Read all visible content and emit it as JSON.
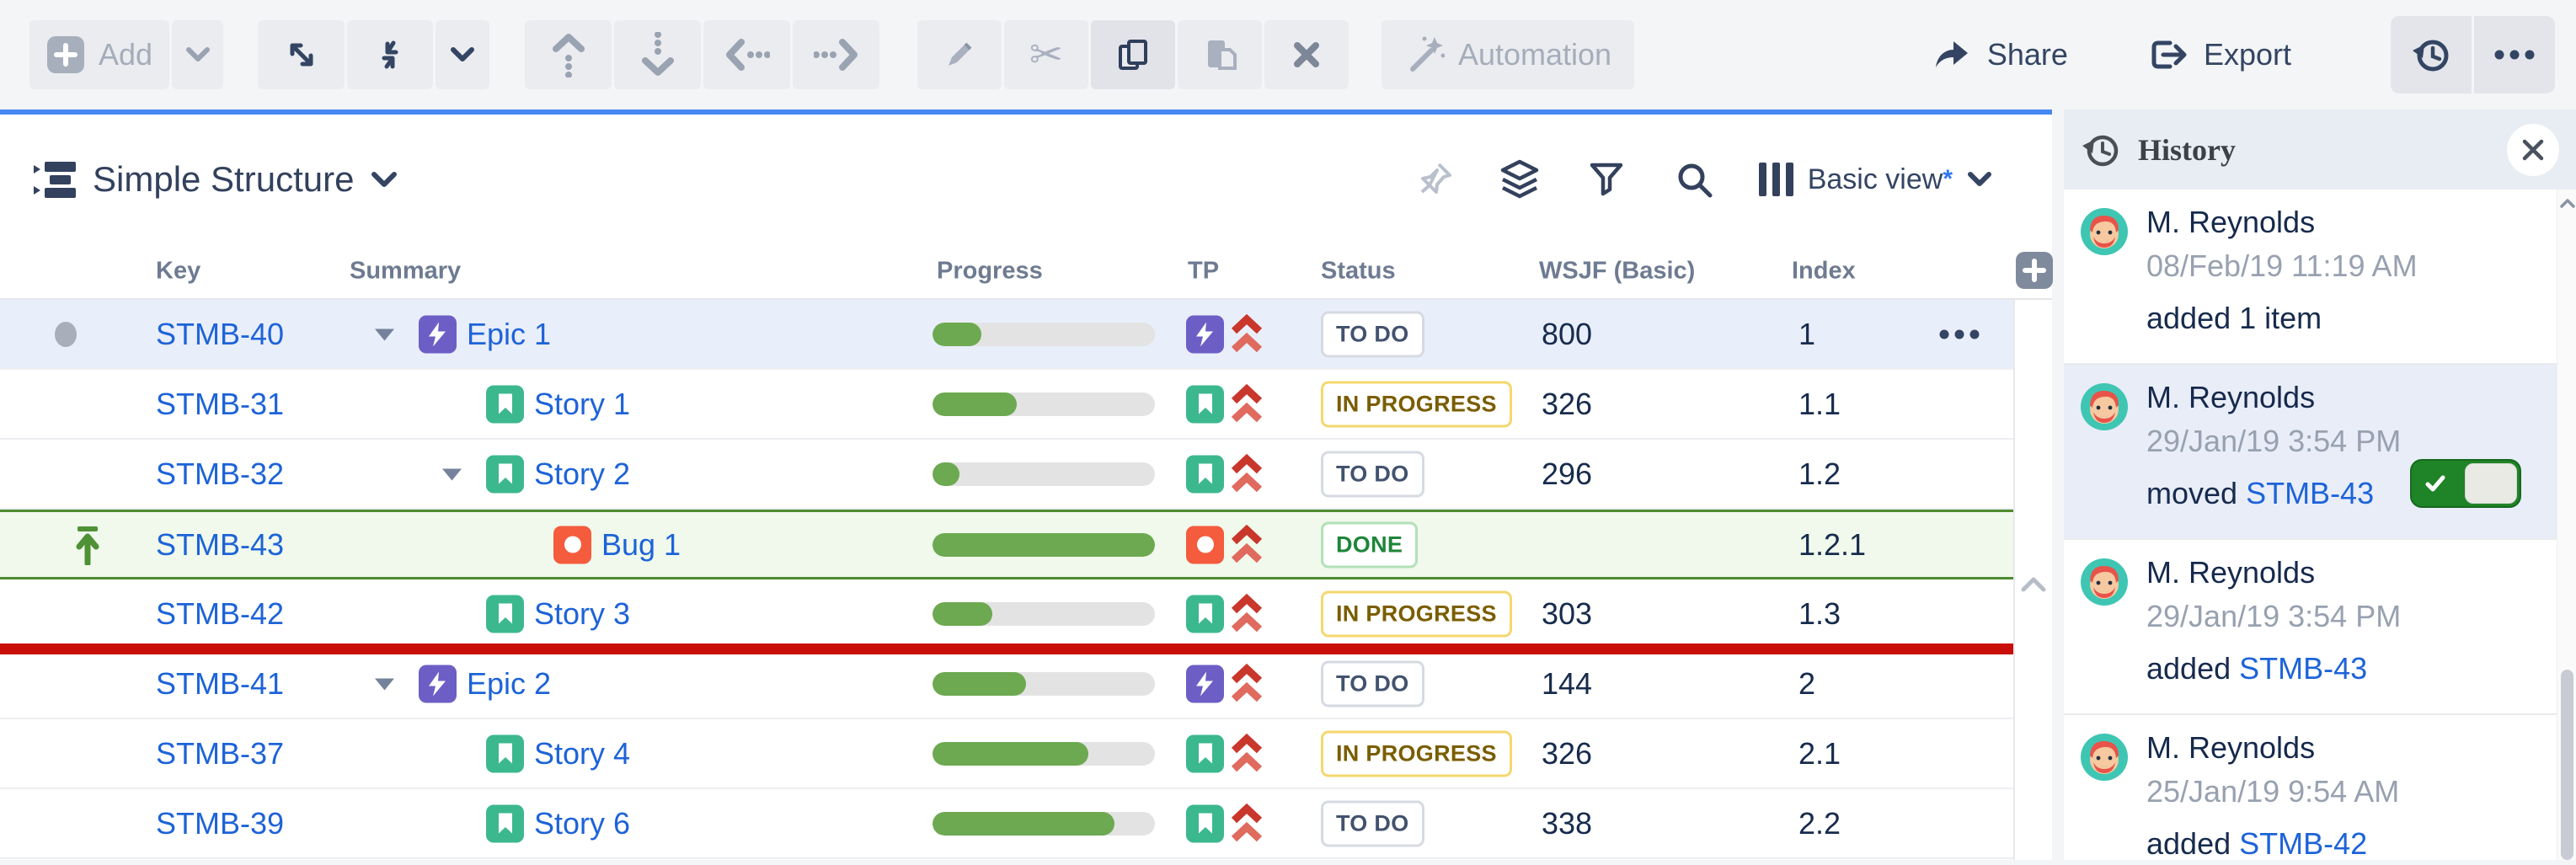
{
  "toolbar": {
    "add_label": "Add",
    "automation_label": "Automation",
    "share_label": "Share",
    "export_label": "Export"
  },
  "panel": {
    "title": "Simple Structure",
    "view_label": "Basic view",
    "view_modified_marker": "*"
  },
  "table": {
    "columns": [
      "Key",
      "Summary",
      "Progress",
      "TP",
      "Status",
      "WSJF (Basic)",
      "Index"
    ],
    "rows": [
      {
        "key": "STMB-40",
        "summary": "Epic 1",
        "type": "epic",
        "level": 1,
        "caret": true,
        "dot": true,
        "pin": false,
        "progress": 0.22,
        "status": "TO DO",
        "status_type": "todo",
        "wsjf": "800",
        "index": "1",
        "selected": true,
        "green": false,
        "more": true
      },
      {
        "key": "STMB-31",
        "summary": "Story 1",
        "type": "story",
        "level": 2,
        "caret": false,
        "dot": false,
        "pin": false,
        "progress": 0.38,
        "status": "IN PROGRESS",
        "status_type": "inprogress",
        "wsjf": "326",
        "index": "1.1",
        "selected": false,
        "green": false,
        "more": false
      },
      {
        "key": "STMB-32",
        "summary": "Story 2",
        "type": "story",
        "level": 2,
        "caret": true,
        "dot": false,
        "pin": false,
        "progress": 0.12,
        "status": "TO DO",
        "status_type": "todo",
        "wsjf": "296",
        "index": "1.2",
        "selected": false,
        "green": false,
        "more": false
      },
      {
        "key": "STMB-43",
        "summary": "Bug 1",
        "type": "bug",
        "level": 3,
        "caret": false,
        "dot": false,
        "pin": true,
        "progress": 1,
        "status": "DONE",
        "status_type": "done",
        "wsjf": "",
        "index": "1.2.1",
        "selected": false,
        "green": true,
        "more": false
      },
      {
        "key": "STMB-42",
        "summary": "Story 3",
        "type": "story",
        "level": 2,
        "caret": false,
        "dot": false,
        "pin": false,
        "progress": 0.27,
        "status": "IN PROGRESS",
        "status_type": "inprogress",
        "wsjf": "303",
        "index": "1.3",
        "selected": false,
        "green": false,
        "more": false
      },
      {
        "key": "STMB-41",
        "summary": "Epic 2",
        "type": "epic",
        "level": 1,
        "caret": true,
        "dot": false,
        "pin": false,
        "progress": 0.42,
        "status": "TO DO",
        "status_type": "todo",
        "wsjf": "144",
        "index": "2",
        "selected": false,
        "green": false,
        "more": false
      },
      {
        "key": "STMB-37",
        "summary": "Story 4",
        "type": "story",
        "level": 2,
        "caret": false,
        "dot": false,
        "pin": false,
        "progress": 0.7,
        "status": "IN PROGRESS",
        "status_type": "inprogress",
        "wsjf": "326",
        "index": "2.1",
        "selected": false,
        "green": false,
        "more": false
      },
      {
        "key": "STMB-39",
        "summary": "Story 6",
        "type": "story",
        "level": 2,
        "caret": false,
        "dot": false,
        "pin": false,
        "progress": 0.82,
        "status": "TO DO",
        "status_type": "todo",
        "wsjf": "338",
        "index": "2.2",
        "selected": false,
        "green": false,
        "more": false
      }
    ]
  },
  "history": {
    "title": "History",
    "entries": [
      {
        "name": "M. Reynolds",
        "time": "08/Feb/19 11:19 AM",
        "action": "added 1 item",
        "link": "",
        "selected": false,
        "toggle": false
      },
      {
        "name": "M. Reynolds",
        "time": "29/Jan/19 3:54 PM",
        "action": "moved ",
        "link": "STMB-43",
        "selected": true,
        "toggle": true
      },
      {
        "name": "M. Reynolds",
        "time": "29/Jan/19 3:54 PM",
        "action": "added ",
        "link": "STMB-43",
        "selected": false,
        "toggle": false
      },
      {
        "name": "M. Reynolds",
        "time": "25/Jan/19 9:54 AM",
        "action": "added ",
        "link": "STMB-42",
        "selected": false,
        "toggle": false
      }
    ]
  },
  "colors": {
    "accent_top_border": "#4688F1",
    "link": "#1D63D8",
    "selected_row": "#E9EEFB",
    "green_row_bg": "#F0F9EC",
    "green_row_border": "#4E8A2E",
    "red_line": "#C90D09",
    "progress": "#6CA950",
    "progress_track": "#E3E3E3",
    "types": {
      "epic": "#6D5EC6",
      "story": "#3CB88E",
      "bug": "#F55B3D"
    },
    "priority_highest": [
      "#C9362B",
      "#E06A5E"
    ],
    "status": {
      "todo": {
        "text": "#42526E",
        "border": "#D6DAE1"
      },
      "inprogress": {
        "text": "#7A5D00",
        "border": "#F5D76E"
      },
      "done": {
        "text": "#1E8539",
        "border": "#B3E0B8"
      }
    },
    "toggle_on": "#1F8427",
    "avatar_bg": "#3EC6B3"
  }
}
